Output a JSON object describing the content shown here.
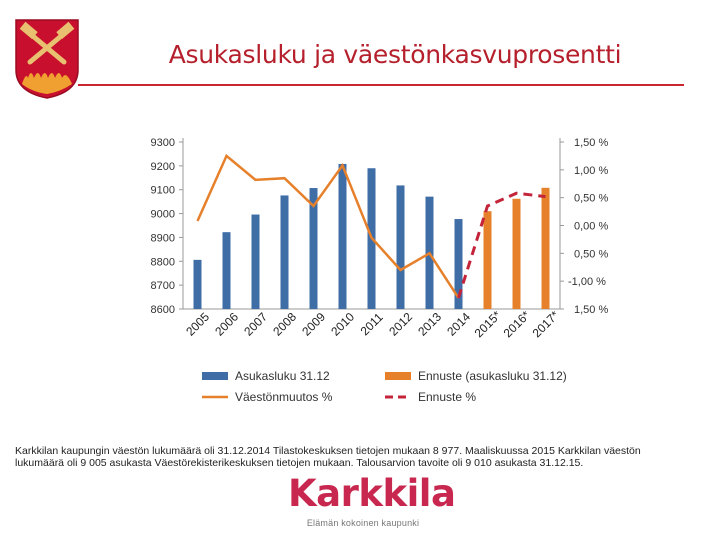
{
  "title": "Asukasluku ja väestönkasvuprosentti",
  "coat_of_arms": "karkkila-coat-of-arms-with-crossed-hammers",
  "colors": {
    "title": "#b5202c",
    "bar_actual": "#3f6da6",
    "bar_forecast": "#e6802b",
    "line_actual": "#e6802b",
    "line_forecast": "#c4243a",
    "logo": "#c8284f"
  },
  "chart_data": {
    "type": "bar",
    "combo": "bar-line",
    "categories": [
      "2005",
      "2006",
      "2007",
      "2008",
      "2009",
      "2010",
      "2011",
      "2012",
      "2013",
      "2014",
      "2015*",
      "2016*",
      "2017*"
    ],
    "y_left": {
      "ticks": [
        "9300",
        "9200",
        "9100",
        "9000",
        "8900",
        "8800",
        "8700",
        "8600"
      ],
      "ylim": [
        8600,
        9300
      ]
    },
    "y_right": {
      "ticks": [
        "1,50 %",
        "1,00 %",
        "0,50 %",
        "0,00 %",
        "0,50 %",
        "-1,00 %",
        "1,50 %"
      ],
      "ylim": [
        -1.5,
        1.5
      ]
    },
    "grid": false,
    "legend_position": "bottom",
    "series": [
      {
        "name": "Asukasluku 31.12",
        "kind": "bar",
        "axis": "left",
        "values": [
          8806,
          8922,
          8996,
          9076,
          9107,
          9208,
          9190,
          9118,
          9071,
          8977,
          null,
          null,
          null
        ]
      },
      {
        "name": "Ennuste (asukasluku 31.12)",
        "kind": "bar",
        "axis": "left",
        "values": [
          null,
          null,
          null,
          null,
          null,
          null,
          null,
          null,
          null,
          null,
          9010,
          9062,
          9108
        ]
      },
      {
        "name": "Väestönmuutos %",
        "kind": "line",
        "axis": "right",
        "values": [
          0.08,
          1.25,
          0.82,
          0.85,
          0.35,
          1.08,
          -0.22,
          -0.8,
          -0.5,
          -1.3,
          null,
          null,
          null
        ]
      },
      {
        "name": "Ennuste %",
        "kind": "dashed-line",
        "axis": "right",
        "values": [
          null,
          null,
          null,
          null,
          null,
          null,
          null,
          null,
          null,
          -1.3,
          0.35,
          0.58,
          0.52
        ]
      }
    ]
  },
  "note": {
    "line1": "Karkkilan kaupungin väestön lukumäärä oli 31.12.2014 Tilastokeskuksen tietojen mukaan 8 977. Maaliskuussa 2015 Karkkilan väestön",
    "line2": "lukumäärä oli 9 005 asukasta Väestörekisterikeskuksen tietojen mukaan. Talousarvion tavoite oli 9 010 asukasta 31.12.15."
  },
  "logo": {
    "wordmark": "Karkkila",
    "tagline": "Elämän kokoinen kaupunki"
  }
}
